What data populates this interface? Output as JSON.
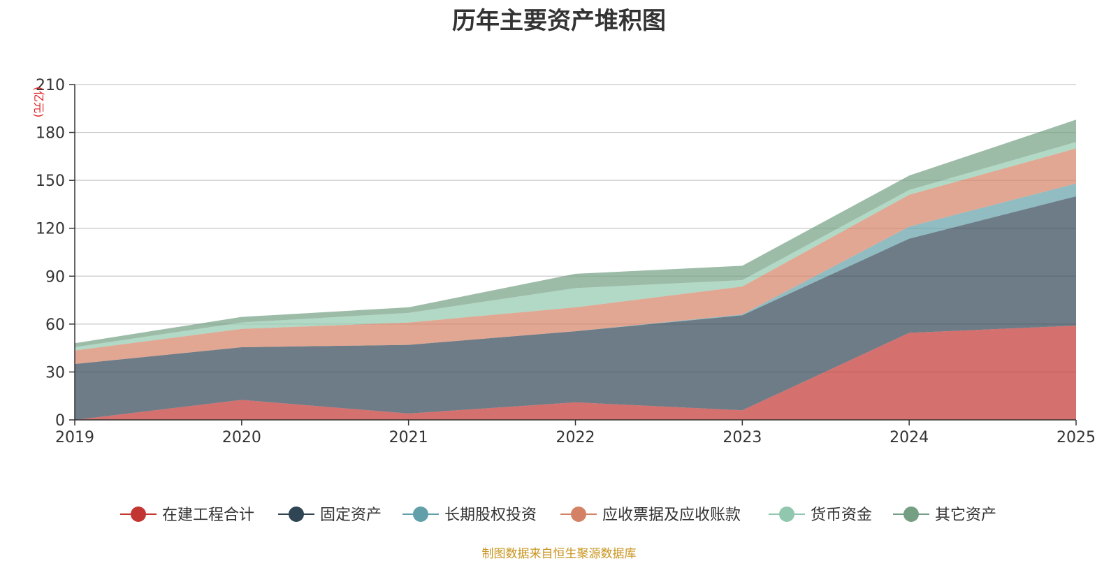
{
  "chart_data": {
    "type": "area",
    "stacked": true,
    "title": "历年主要资产堆积图",
    "unit_label": "(亿元)",
    "x": [
      "2019",
      "2020",
      "2021",
      "2022",
      "2023",
      "2024",
      "2025"
    ],
    "ylim": [
      0,
      210
    ],
    "yticks": [
      0,
      30,
      60,
      90,
      120,
      150,
      180,
      210
    ],
    "grid": true,
    "legend_position": "bottom",
    "series": [
      {
        "name": "在建工程合计",
        "color": "#c23531",
        "values": [
          0,
          12.5,
          4,
          11,
          6,
          54.5,
          59
        ]
      },
      {
        "name": "固定资产",
        "color": "#2f4554",
        "values": [
          35,
          33,
          43,
          44.5,
          59.5,
          59,
          81
        ]
      },
      {
        "name": "长期股权投资",
        "color": "#61a0a8",
        "values": [
          0,
          0,
          0,
          0,
          0.5,
          7.5,
          8
        ]
      },
      {
        "name": "应收票据及应收账款",
        "color": "#d48265",
        "values": [
          8.5,
          11.5,
          14,
          15,
          17.5,
          20,
          22
        ]
      },
      {
        "name": "货币资金",
        "color": "#91c7ae",
        "values": [
          2,
          4,
          6,
          12,
          4,
          3,
          4
        ]
      },
      {
        "name": "其它资产",
        "color": "#749f83",
        "values": [
          2.5,
          3.5,
          3.5,
          9,
          9,
          9,
          14
        ]
      }
    ],
    "source": "制图数据来自恒生聚源数据库"
  }
}
